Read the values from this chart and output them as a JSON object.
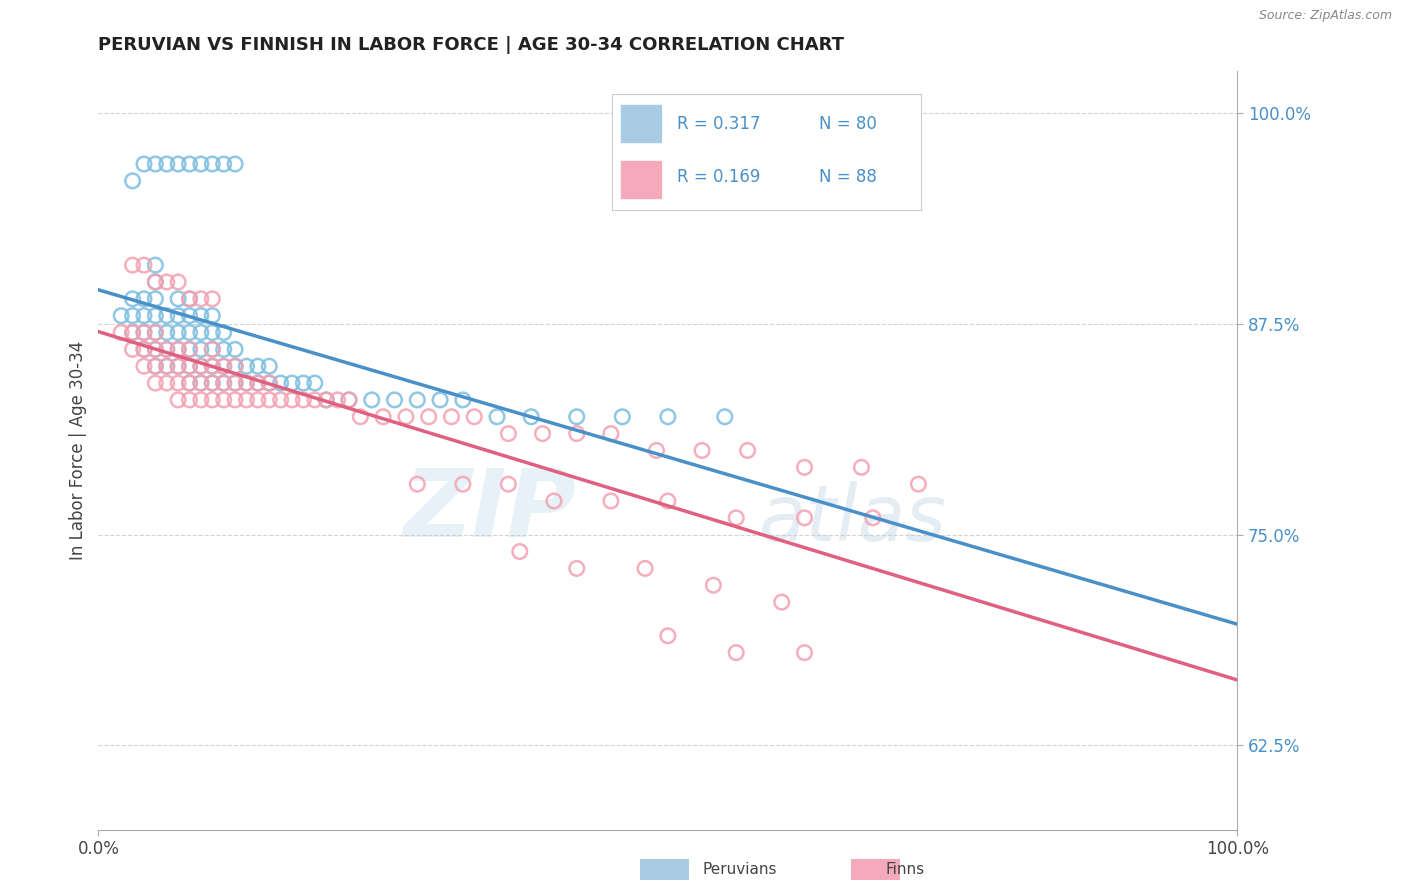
{
  "title": "PERUVIAN VS FINNISH IN LABOR FORCE | AGE 30-34 CORRELATION CHART",
  "source": "Source: ZipAtlas.com",
  "ylabel": "In Labor Force | Age 30-34",
  "xlim": [
    0.0,
    1.0
  ],
  "ylim": [
    0.575,
    1.025
  ],
  "yticks": [
    0.625,
    0.75,
    0.875,
    1.0
  ],
  "ytick_labels": [
    "62.5%",
    "75.0%",
    "87.5%",
    "100.0%"
  ],
  "legend_blue_r": "R = 0.317",
  "legend_blue_n": "N = 80",
  "legend_pink_r": "R = 0.169",
  "legend_pink_n": "N = 88",
  "blue_color": "#7bbde0",
  "pink_color": "#f4a0b0",
  "line_blue": "#4a90c8",
  "line_pink": "#e06080",
  "bg_color": "#ffffff",
  "grid_color": "#c8c8c8",
  "blue_scatter_x": [
    0.02,
    0.03,
    0.03,
    0.03,
    0.04,
    0.04,
    0.04,
    0.04,
    0.05,
    0.05,
    0.05,
    0.05,
    0.05,
    0.05,
    0.05,
    0.06,
    0.06,
    0.06,
    0.06,
    0.07,
    0.07,
    0.07,
    0.07,
    0.07,
    0.08,
    0.08,
    0.08,
    0.08,
    0.08,
    0.08,
    0.09,
    0.09,
    0.09,
    0.09,
    0.09,
    0.1,
    0.1,
    0.1,
    0.1,
    0.1,
    0.11,
    0.11,
    0.11,
    0.11,
    0.12,
    0.12,
    0.12,
    0.13,
    0.13,
    0.14,
    0.14,
    0.15,
    0.15,
    0.16,
    0.17,
    0.18,
    0.19,
    0.2,
    0.22,
    0.24,
    0.26,
    0.28,
    0.3,
    0.32,
    0.35,
    0.38,
    0.42,
    0.46,
    0.5,
    0.55,
    0.03,
    0.04,
    0.05,
    0.06,
    0.07,
    0.08,
    0.09,
    0.1,
    0.11,
    0.12
  ],
  "blue_scatter_y": [
    0.88,
    0.87,
    0.88,
    0.89,
    0.86,
    0.87,
    0.88,
    0.89,
    0.85,
    0.86,
    0.87,
    0.88,
    0.89,
    0.9,
    0.91,
    0.85,
    0.86,
    0.87,
    0.88,
    0.85,
    0.86,
    0.87,
    0.88,
    0.89,
    0.84,
    0.85,
    0.86,
    0.87,
    0.88,
    0.89,
    0.84,
    0.85,
    0.86,
    0.87,
    0.88,
    0.84,
    0.85,
    0.86,
    0.87,
    0.88,
    0.84,
    0.85,
    0.86,
    0.87,
    0.84,
    0.85,
    0.86,
    0.84,
    0.85,
    0.84,
    0.85,
    0.84,
    0.85,
    0.84,
    0.84,
    0.84,
    0.84,
    0.83,
    0.83,
    0.83,
    0.83,
    0.83,
    0.83,
    0.83,
    0.82,
    0.82,
    0.82,
    0.82,
    0.82,
    0.82,
    0.96,
    0.97,
    0.97,
    0.97,
    0.97,
    0.97,
    0.97,
    0.97,
    0.97,
    0.97
  ],
  "pink_scatter_x": [
    0.02,
    0.03,
    0.03,
    0.04,
    0.04,
    0.04,
    0.05,
    0.05,
    0.05,
    0.05,
    0.06,
    0.06,
    0.06,
    0.07,
    0.07,
    0.07,
    0.07,
    0.08,
    0.08,
    0.08,
    0.08,
    0.09,
    0.09,
    0.09,
    0.1,
    0.1,
    0.1,
    0.1,
    0.11,
    0.11,
    0.11,
    0.12,
    0.12,
    0.12,
    0.13,
    0.13,
    0.14,
    0.14,
    0.15,
    0.15,
    0.16,
    0.17,
    0.18,
    0.19,
    0.2,
    0.21,
    0.22,
    0.23,
    0.25,
    0.27,
    0.29,
    0.31,
    0.33,
    0.36,
    0.39,
    0.42,
    0.45,
    0.49,
    0.53,
    0.57,
    0.62,
    0.67,
    0.72,
    0.28,
    0.32,
    0.36,
    0.4,
    0.45,
    0.5,
    0.56,
    0.62,
    0.68,
    0.37,
    0.42,
    0.48,
    0.54,
    0.6,
    0.5,
    0.56,
    0.62,
    0.03,
    0.04,
    0.05,
    0.06,
    0.07,
    0.08,
    0.09,
    0.1
  ],
  "pink_scatter_y": [
    0.87,
    0.86,
    0.87,
    0.85,
    0.86,
    0.87,
    0.84,
    0.85,
    0.86,
    0.87,
    0.84,
    0.85,
    0.86,
    0.83,
    0.84,
    0.85,
    0.86,
    0.83,
    0.84,
    0.85,
    0.86,
    0.83,
    0.84,
    0.85,
    0.83,
    0.84,
    0.85,
    0.86,
    0.83,
    0.84,
    0.85,
    0.83,
    0.84,
    0.85,
    0.83,
    0.84,
    0.83,
    0.84,
    0.83,
    0.84,
    0.83,
    0.83,
    0.83,
    0.83,
    0.83,
    0.83,
    0.83,
    0.82,
    0.82,
    0.82,
    0.82,
    0.82,
    0.82,
    0.81,
    0.81,
    0.81,
    0.81,
    0.8,
    0.8,
    0.8,
    0.79,
    0.79,
    0.78,
    0.78,
    0.78,
    0.78,
    0.77,
    0.77,
    0.77,
    0.76,
    0.76,
    0.76,
    0.74,
    0.73,
    0.73,
    0.72,
    0.71,
    0.69,
    0.68,
    0.68,
    0.91,
    0.91,
    0.9,
    0.9,
    0.9,
    0.89,
    0.89,
    0.89
  ]
}
